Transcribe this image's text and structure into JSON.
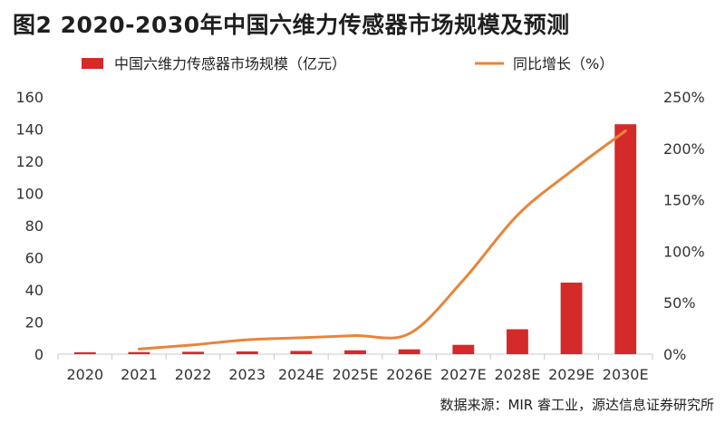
{
  "title": "图2  2020-2030年中国六维力传感器市场规模及预测",
  "source": "数据来源：MIR 睿工业，源达信息证券研究所",
  "colors": {
    "bar": "#d42a2a",
    "line": "#e8843a",
    "axis": "#c8c8c8",
    "text": "#333333"
  },
  "chart_data": {
    "type": "bar",
    "categories": [
      "2020",
      "2021",
      "2022",
      "2023",
      "2024E",
      "2025E",
      "2026E",
      "2027E",
      "2028E",
      "2029E",
      "2030E"
    ],
    "series": [
      {
        "name": "中国六维力传感器市场规模（亿元）",
        "type": "bar",
        "axis": "left",
        "values": [
          1.2,
          1.3,
          1.5,
          1.7,
          2.0,
          2.4,
          3.0,
          5.8,
          15.5,
          44.5,
          143
        ]
      },
      {
        "name": "同比增长（%）",
        "type": "line",
        "axis": "right",
        "values": [
          null,
          5,
          9,
          14,
          16,
          18,
          20,
          72,
          135,
          178,
          217
        ]
      }
    ],
    "y_left": {
      "min": 0,
      "max": 160,
      "ticks": [
        "0",
        "20",
        "40",
        "60",
        "80",
        "100",
        "120",
        "140",
        "160"
      ]
    },
    "y_right": {
      "min": 0,
      "max": 250,
      "ticks": [
        "0%",
        "50%",
        "100%",
        "150%",
        "200%",
        "250%"
      ]
    },
    "legend_position": "top",
    "grid": false
  }
}
